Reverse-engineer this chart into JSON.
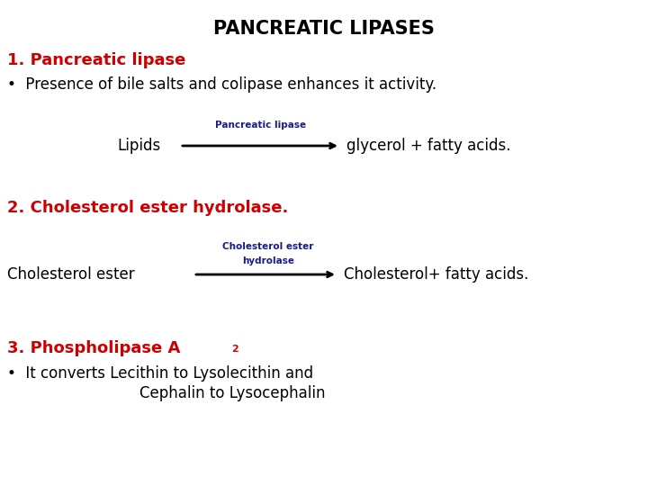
{
  "title": "PANCREATIC LIPASES",
  "title_fontsize": 15,
  "title_color": "#000000",
  "title_fontweight": "bold",
  "background_color": "#ffffff",
  "section1_heading": "1. Pancreatic lipase",
  "section1_heading_color": "#cc0000",
  "section1_heading_fontsize": 13,
  "section1_heading_fontweight": "bold",
  "section1_bullet": "Presence of bile salts and colipase enhances it activity.",
  "section1_bullet_fontsize": 12,
  "rxn1_left": "Lipids",
  "rxn1_enzyme": "Pancreatic lipase",
  "rxn1_right": "glycerol + fatty acids.",
  "rxn1_fontsize": 12,
  "rxn1_enzyme_fontsize": 7.5,
  "rxn1_enzyme_color": "#1a1a8c",
  "section2_heading": "2. Cholesterol ester hydrolase.",
  "section2_heading_color": "#cc0000",
  "section2_heading_fontsize": 13,
  "section2_heading_fontweight": "bold",
  "rxn2_left": "Cholesterol ester",
  "rxn2_enzyme_line1": "Cholesterol ester",
  "rxn2_enzyme_line2": "hydrolase",
  "rxn2_right": "Cholesterol+ fatty acids.",
  "rxn2_fontsize": 12,
  "rxn2_enzyme_fontsize": 7.5,
  "rxn2_enzyme_color": "#1a1a8c",
  "section3_heading_part1": "3. Phospholipase A",
  "section3_heading_sub": "2",
  "section3_heading_color": "#cc0000",
  "section3_heading_fontsize": 13,
  "section3_heading_fontweight": "bold",
  "section3_bullet_line1": "It converts Lecithin to Lysolecithin and",
  "section3_bullet_line2": "Cephalin to Lysocephalin",
  "section3_bullet_fontsize": 12
}
